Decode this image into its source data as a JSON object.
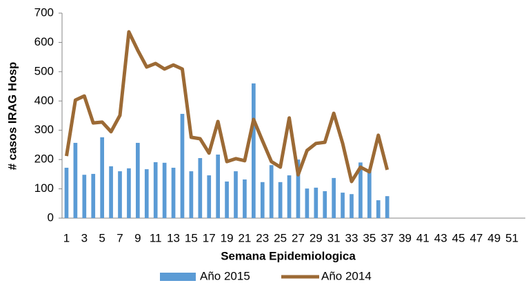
{
  "chart_data": {
    "type": "bar+line",
    "x_label": "Semana Epidemiologica",
    "y_label": "# casos IRAG Hosp",
    "categories": [
      1,
      null,
      3,
      null,
      5,
      null,
      7,
      null,
      9,
      null,
      11,
      null,
      13,
      null,
      15,
      null,
      17,
      null,
      19,
      null,
      21,
      null,
      23,
      null,
      25,
      null,
      27,
      null,
      29,
      null,
      31,
      null,
      33,
      null,
      35,
      null,
      37,
      null,
      39,
      null,
      41,
      null,
      43,
      null,
      45,
      null,
      47,
      null,
      49,
      null,
      51,
      null
    ],
    "series": [
      {
        "name": "Año 2015",
        "type": "bar",
        "color": "#5b9bd5",
        "values": [
          172,
          257,
          148,
          151,
          276,
          177,
          160,
          170,
          257,
          167,
          191,
          189,
          172,
          356,
          160,
          205,
          146,
          217,
          125,
          160,
          132,
          460,
          123,
          181,
          123,
          146,
          200,
          101,
          104,
          92,
          137,
          87,
          82,
          190,
          160,
          61,
          75,
          null,
          null,
          null,
          null,
          null,
          null,
          null,
          null,
          null,
          null,
          null,
          null,
          null,
          null,
          null
        ]
      },
      {
        "name": "Año 2014",
        "type": "line",
        "color": "#9c6a35",
        "values": [
          212,
          403,
          417,
          325,
          328,
          295,
          351,
          636,
          573,
          516,
          528,
          509,
          523,
          509,
          276,
          271,
          222,
          330,
          193,
          203,
          196,
          337,
          264,
          193,
          174,
          342,
          148,
          231,
          255,
          259,
          358,
          255,
          125,
          174,
          158,
          283,
          165,
          null,
          null,
          null,
          null,
          null,
          null,
          null,
          null,
          null,
          null,
          null,
          null,
          null,
          null,
          null
        ]
      }
    ],
    "ylim": [
      0,
      700
    ],
    "yticks": [
      0,
      100,
      200,
      300,
      400,
      500,
      600,
      700
    ],
    "grid": false,
    "legend": "bottom"
  }
}
